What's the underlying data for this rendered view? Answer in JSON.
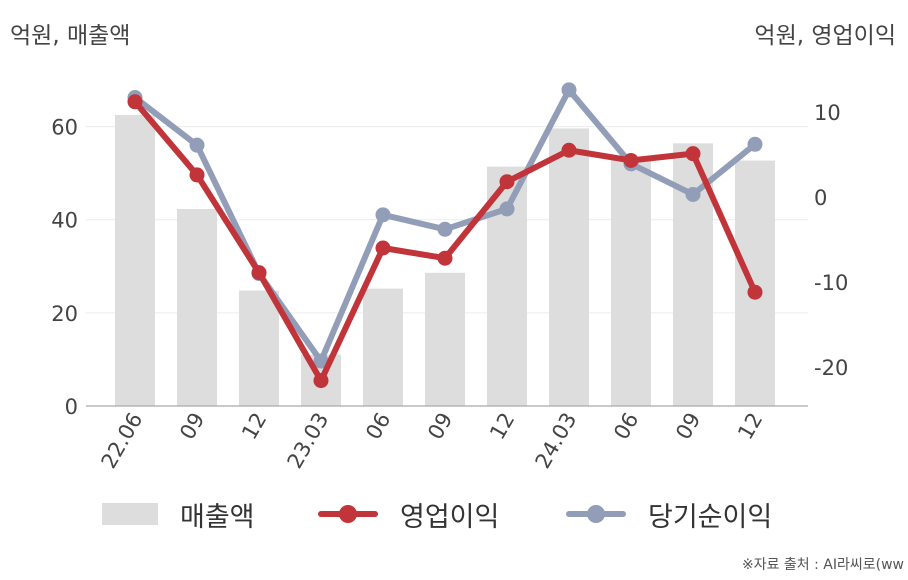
{
  "chart_data": {
    "type": "bar",
    "categories": [
      "22.06",
      "09",
      "12",
      "23.03",
      "06",
      "09",
      "12",
      "24.03",
      "06",
      "09",
      "12"
    ],
    "left_axis": {
      "label": "억원, 매출액",
      "ticks": [
        0,
        20,
        40,
        60
      ],
      "ylim": [
        0,
        70
      ]
    },
    "right_axis": {
      "label": "억원, 영업이익",
      "ticks": [
        -20,
        -10,
        0,
        10
      ],
      "ylim": [
        -25,
        17
      ]
    },
    "series": [
      {
        "name": "매출액",
        "kind": "bar",
        "axis": "left",
        "color": "#dddddd",
        "values": [
          62.5,
          42.3,
          24.8,
          11.0,
          25.2,
          28.6,
          51.4,
          59.6,
          52.8,
          56.4,
          52.7
        ]
      },
      {
        "name": "영업이익",
        "kind": "line",
        "axis": "right",
        "color": "#c0343a",
        "values": [
          11.2,
          2.6,
          -8.9,
          -21.6,
          -6.0,
          -7.2,
          1.8,
          5.5,
          4.3,
          5.1,
          -11.2
        ]
      },
      {
        "name": "당기순이익",
        "kind": "line",
        "axis": "right",
        "color": "#929db8",
        "values": [
          11.7,
          6.1,
          -9.0,
          -19.3,
          -2.1,
          -3.8,
          -1.4,
          12.6,
          3.9,
          0.3,
          6.2
        ]
      }
    ],
    "grid": true,
    "legend": "bottom"
  },
  "source": "※자료 출처 : AI라씨로(ww"
}
